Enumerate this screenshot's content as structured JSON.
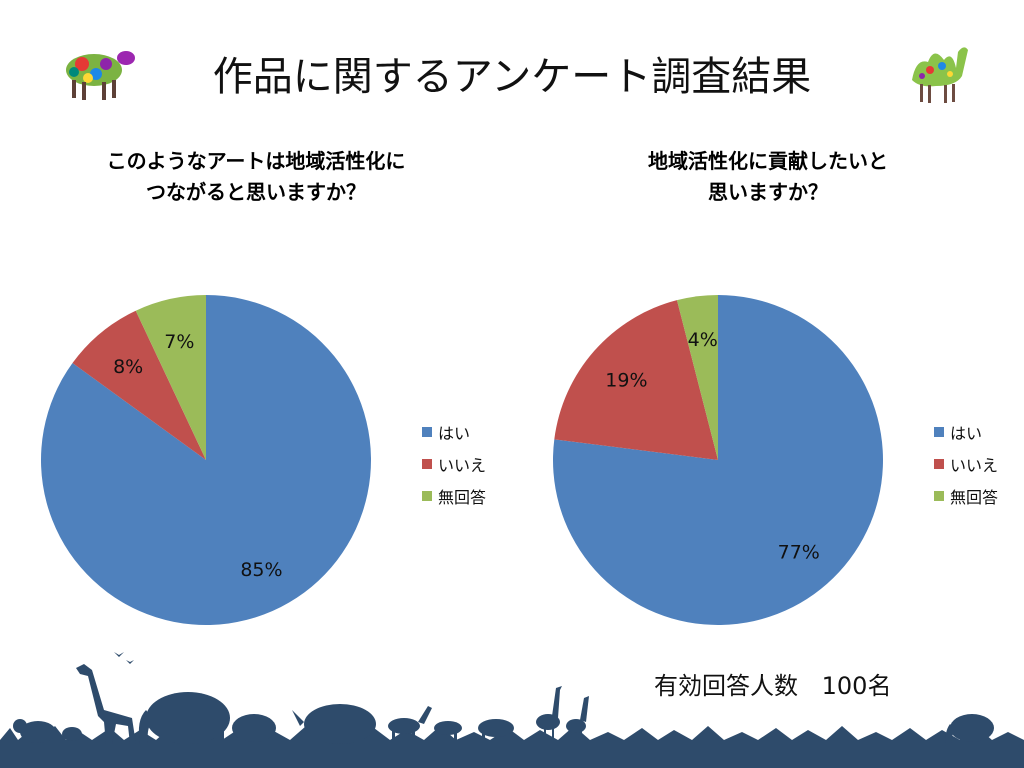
{
  "slide": {
    "title": "作品に関するアンケート調査結果"
  },
  "chart_data": [
    {
      "type": "pie",
      "title_lines": [
        "このようなアートは地域活性化に",
        "つながると思いますか？"
      ],
      "legend_placement": "right",
      "slices": [
        {
          "name": "はい",
          "value": 85,
          "label": "85%",
          "color": "#4F81BD"
        },
        {
          "name": "いいえ",
          "value": 8,
          "label": "8%",
          "color": "#C0504D"
        },
        {
          "name": "無回答",
          "value": 7,
          "label": "7%",
          "color": "#9BBB59"
        }
      ]
    },
    {
      "type": "pie",
      "title_lines": [
        "地域活性化に貢献したいと",
        "思いますか？"
      ],
      "legend_placement": "right",
      "slices": [
        {
          "name": "はい",
          "value": 77,
          "label": "77%",
          "color": "#4F81BD"
        },
        {
          "name": "いいえ",
          "value": 19,
          "label": "19%",
          "color": "#C0504D"
        },
        {
          "name": "無回答",
          "value": 4,
          "label": "4%",
          "color": "#9BBB59"
        }
      ]
    }
  ],
  "summary": {
    "label": "有効回答人数",
    "value": "100名"
  },
  "decor": {
    "left_icon": "cow-mosaic-icon",
    "right_icon": "camel-mosaic-icon",
    "footer": "savanna-animal-silhouettes",
    "footer_color": "#2E4B6B"
  }
}
